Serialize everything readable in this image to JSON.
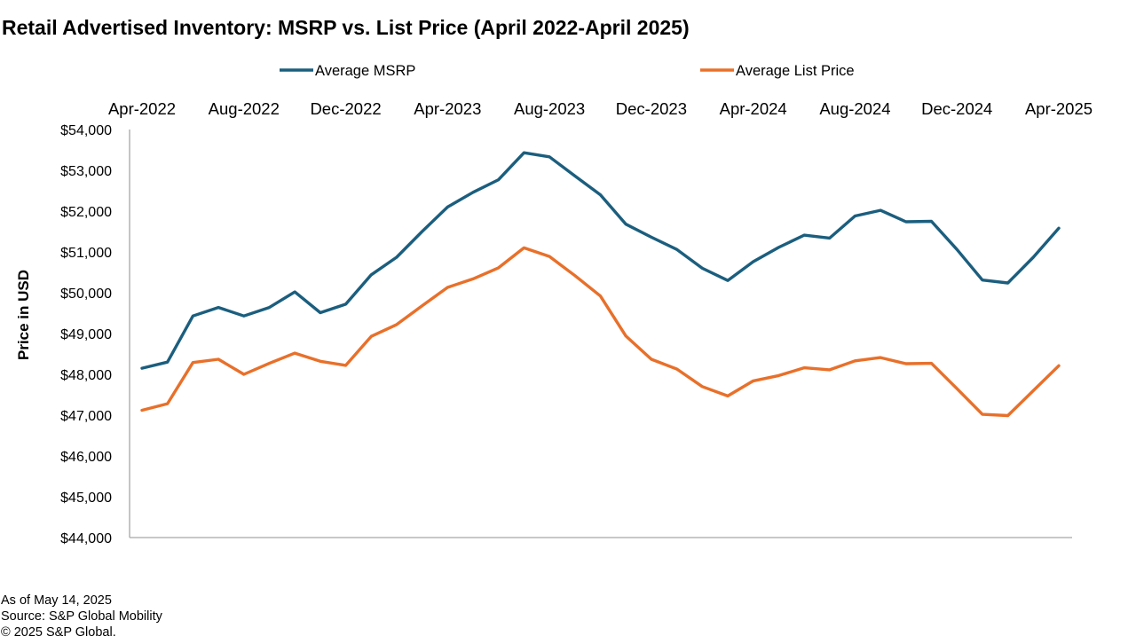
{
  "chart_data": {
    "type": "line",
    "title": "Retail Advertised Inventory: MSRP vs. List Price (April 2022-April 2025)",
    "ylabel": "Price in USD",
    "xlabel": "",
    "ylim": [
      44000,
      54000
    ],
    "y_ticks": [
      "$44,000",
      "$45,000",
      "$46,000",
      "$47,000",
      "$48,000",
      "$49,000",
      "$50,000",
      "$51,000",
      "$52,000",
      "$53,000",
      "$54,000"
    ],
    "x_tick_labels": [
      "Apr-2022",
      "Aug-2022",
      "Dec-2022",
      "Apr-2023",
      "Aug-2023",
      "Dec-2023",
      "Apr-2024",
      "Aug-2024",
      "Dec-2024",
      "Apr-2025"
    ],
    "x_axis_position": "top",
    "legend_position": "top",
    "series": [
      {
        "name": "Average MSRP",
        "color": "#1b5e7e",
        "values": [
          48150,
          48300,
          49430,
          49640,
          49430,
          49640,
          50020,
          49510,
          49720,
          50440,
          50870,
          51500,
          52100,
          52460,
          52770,
          53430,
          53330,
          52860,
          52400,
          51680,
          51360,
          51060,
          50600,
          50300,
          50760,
          51110,
          51410,
          51340,
          51880,
          52020,
          51740,
          51750,
          51060,
          50310,
          50240,
          50870,
          51580
        ]
      },
      {
        "name": "Average List Price",
        "color": "#e8702a",
        "values": [
          47120,
          47280,
          48290,
          48370,
          48000,
          48270,
          48520,
          48320,
          48220,
          48930,
          49220,
          49680,
          50130,
          50340,
          50610,
          51100,
          50890,
          50420,
          49920,
          48940,
          48370,
          48130,
          47700,
          47470,
          47840,
          47970,
          48160,
          48110,
          48330,
          48410,
          48260,
          48270,
          47650,
          47020,
          46990,
          47600,
          48210
        ]
      }
    ]
  },
  "footer": {
    "as_of": "As of May 14, 2025",
    "source": "Source: S&P Global Mobility",
    "copyright": "© 2025 S&P Global."
  }
}
